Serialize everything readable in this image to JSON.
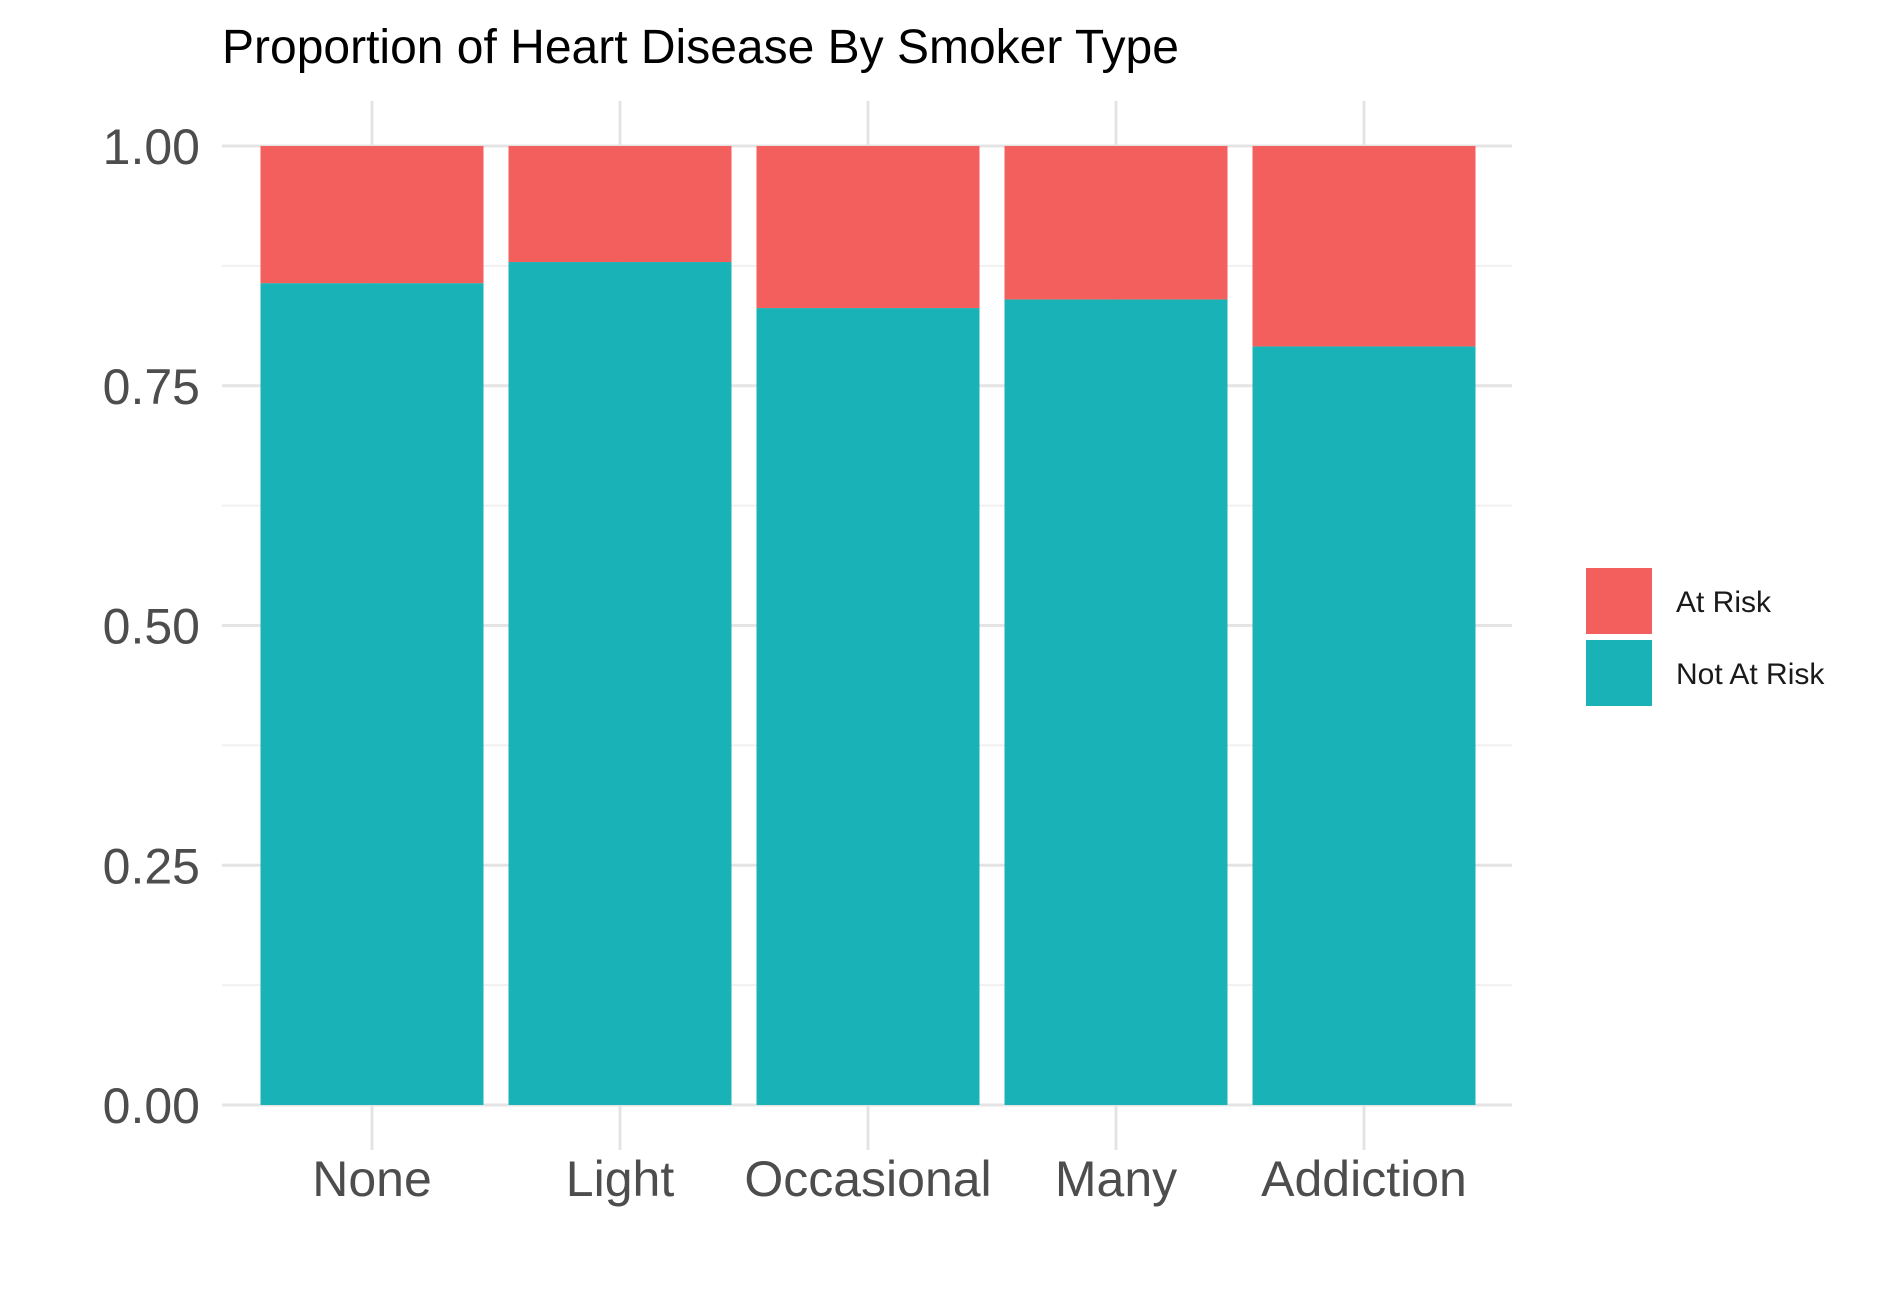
{
  "chart_data": {
    "type": "bar",
    "stacked": true,
    "title": "Proportion of Heart Disease By Smoker Type",
    "xlabel": "",
    "ylabel": "",
    "categories": [
      "None",
      "Light",
      "Occasional",
      "Many",
      "Addiction"
    ],
    "series": [
      {
        "name": "Not At Risk",
        "color": "#19B3B7",
        "values": [
          0.857,
          0.879,
          0.831,
          0.84,
          0.791
        ]
      },
      {
        "name": "At Risk",
        "color": "#F25F5C",
        "values": [
          0.143,
          0.121,
          0.169,
          0.16,
          0.209
        ]
      }
    ],
    "ylim": [
      0,
      1
    ],
    "yticks": [
      "0.00",
      "0.25",
      "0.50",
      "0.75",
      "1.00"
    ],
    "ytick_values": [
      0,
      0.25,
      0.5,
      0.75,
      1.0
    ],
    "grid": true,
    "legend": {
      "position": "right",
      "entries": [
        "At Risk",
        "Not At Risk"
      ]
    }
  }
}
